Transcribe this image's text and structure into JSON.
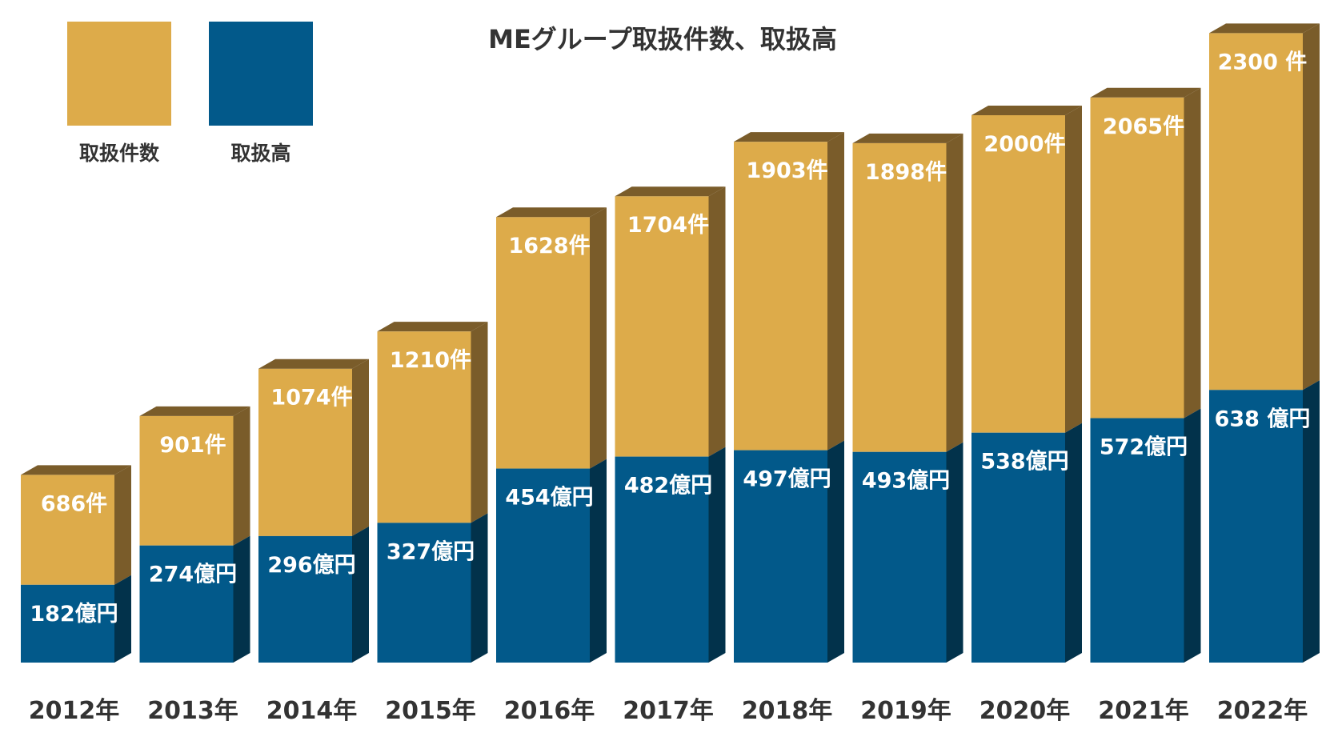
{
  "chart_data": {
    "type": "bar",
    "stacked": true,
    "style": "3d",
    "title": "MEグループ取扱件数、取扱高",
    "categories": [
      "2012年",
      "2013年",
      "2014年",
      "2015年",
      "2016年",
      "2017年",
      "2018年",
      "2019年",
      "2020年",
      "2021年",
      "2022年"
    ],
    "series": [
      {
        "name": "取扱件数",
        "color": "#DDAB4A",
        "side_color": "#7A5C2A",
        "values": [
          686,
          901,
          1074,
          1210,
          1628,
          1704,
          1903,
          1898,
          2000,
          2065,
          2300
        ],
        "labels": [
          "686件",
          "901件",
          "1074件",
          "1210件",
          "1628件",
          "1704件",
          "1903件",
          "1898件",
          "2000件",
          "2065件",
          "2300 件"
        ]
      },
      {
        "name": "取扱高",
        "color": "#02598A",
        "side_color": "#02324B",
        "values": [
          182,
          274,
          296,
          327,
          454,
          482,
          497,
          493,
          538,
          572,
          638
        ],
        "labels": [
          "182億円",
          "274億円",
          "296億円",
          "327億円",
          "454億円",
          "482億円",
          "497億円",
          "493億円",
          "538億円",
          "572億円",
          "638 億円"
        ]
      }
    ],
    "legend": "top-left",
    "grid": false,
    "xlabel": "",
    "ylabel": ""
  }
}
